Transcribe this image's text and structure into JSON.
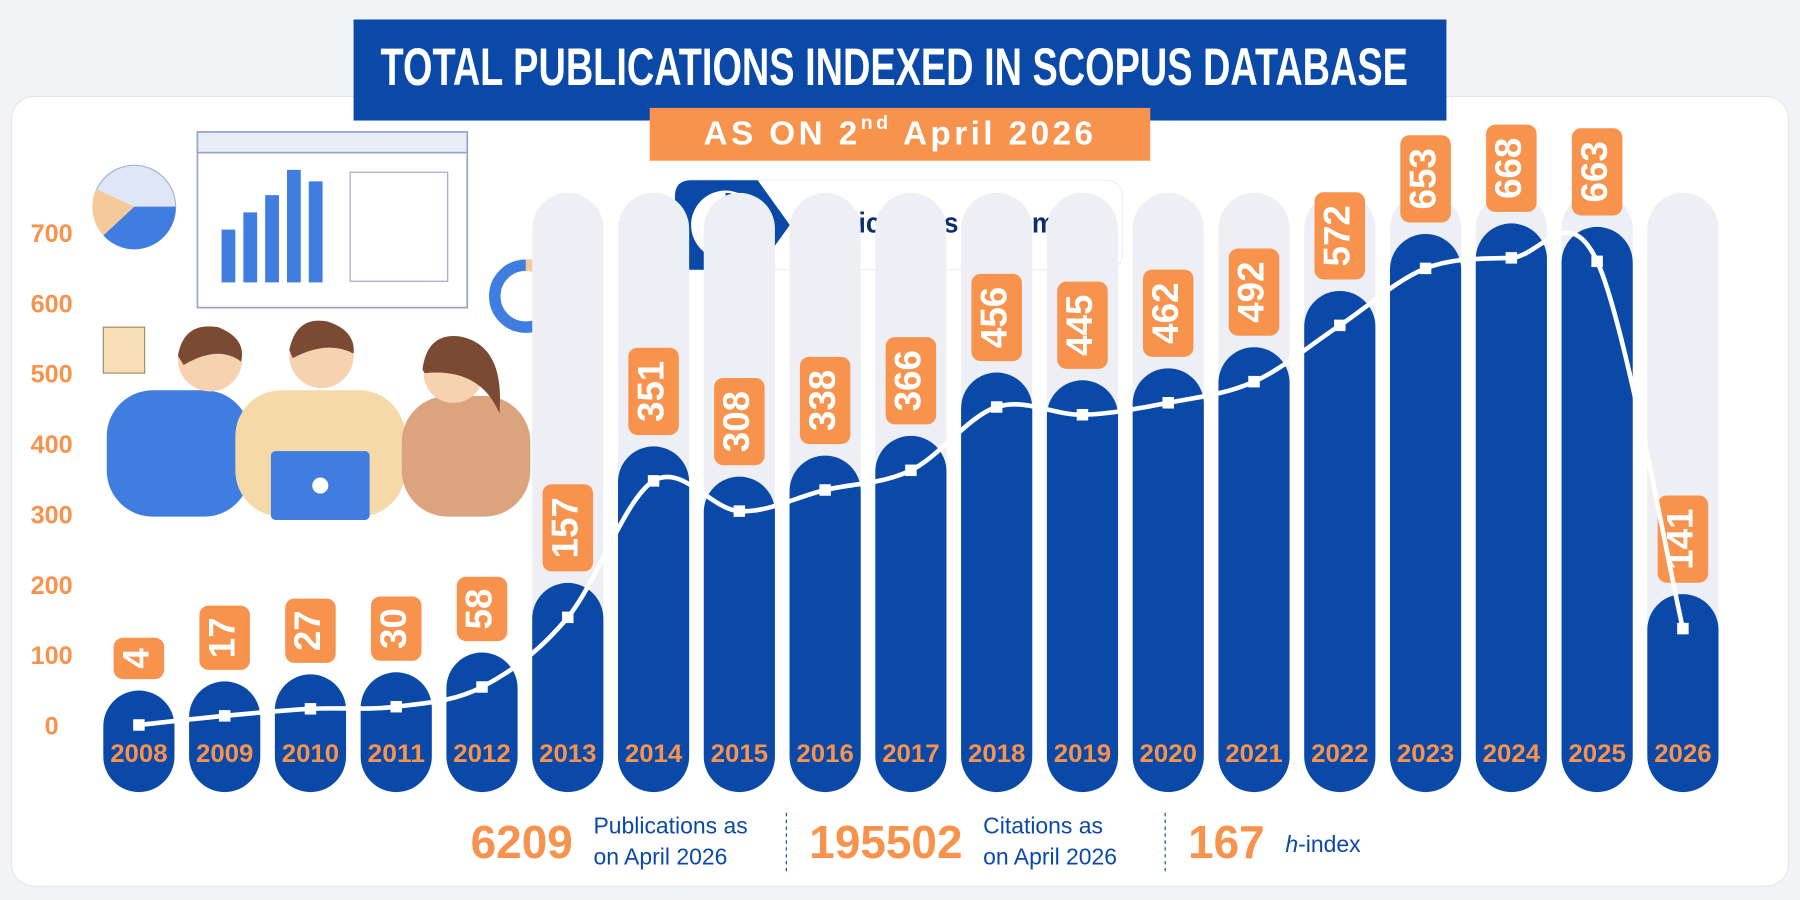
{
  "chart_data": {
    "type": "bar-line",
    "title": "TOTAL PUBLICATIONS INDEXED IN SCOPUS DATABASE",
    "subtitle": {
      "text": "AS ON 2",
      "superscript": "nd",
      "rest": "April 2026"
    },
    "heading": "Publications in Numbers",
    "categories": [
      "2008",
      "2009",
      "2010",
      "2011",
      "2012",
      "2013",
      "2014",
      "2015",
      "2016",
      "2017",
      "2018",
      "2019",
      "2020",
      "2021",
      "2022",
      "2023",
      "2024",
      "2025",
      "2026"
    ],
    "values": [
      4,
      17,
      27,
      30,
      58,
      157,
      351,
      308,
      338,
      366,
      456,
      445,
      462,
      492,
      572,
      653,
      668,
      663,
      141
    ],
    "bar_color": "#0a49a8",
    "label_color": "#f7934c",
    "line_color": "#ffffff",
    "ylim": [
      0,
      700
    ],
    "yticks": [
      0,
      100,
      200,
      300,
      400,
      500,
      600,
      700
    ],
    "grid": false,
    "stats": [
      {
        "value": 6209,
        "label_lines": [
          "Publications as",
          "on April 2026"
        ]
      },
      {
        "value": 195502,
        "label_lines": [
          "Citations as",
          "on April 2026"
        ]
      },
      {
        "value": 167,
        "label_italic": "h",
        "label": "-index"
      }
    ]
  }
}
